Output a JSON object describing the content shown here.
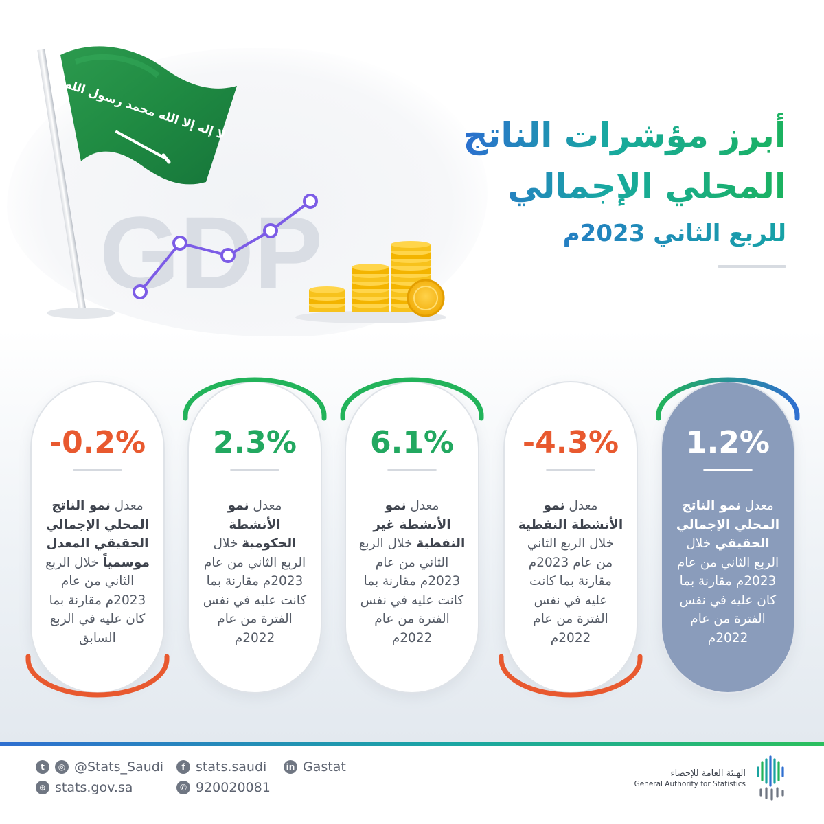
{
  "hero": {
    "flag_text": "لا إله إلا الله محمد رسول الله",
    "watermark": "GDP"
  },
  "title": {
    "line1": "أبرز مؤشرات الناتج",
    "line2": "المحلي الإجمالي",
    "line3": "للربع الثاني 2023م"
  },
  "cards": [
    {
      "value": "1.2%",
      "value_color": "#ffffff",
      "highlight": true,
      "desc_pre": "معدل ",
      "desc_bold": "نمو الناتج المحلي الإجمالي الحقيقي",
      "desc_post": " خلال الربع الثاني من عام 2023م مقارنة بما كان عليه في نفس الفترة من عام 2022م",
      "arc": "top",
      "arc_colors": [
        "#22b35a",
        "#2f6fd0"
      ]
    },
    {
      "value": "-4.3%",
      "value_color": "#e8592f",
      "highlight": false,
      "desc_pre": "معدل ",
      "desc_bold": "نمو الأنشطة النفطية",
      "desc_post": " خلال الربع الثاني من عام 2023م مقارنة بما كانت عليه في نفس الفترة من عام 2022م",
      "arc": "bottom",
      "arc_colors": [
        "#e8592f",
        "#e8592f"
      ]
    },
    {
      "value": "6.1%",
      "value_color": "#22a860",
      "highlight": false,
      "desc_pre": "معدل ",
      "desc_bold": "نمو الأنشطة غير النفطية",
      "desc_post": " خلال الربع الثاني من عام 2023م مقارنة بما كانت عليه في نفس الفترة من عام 2022م",
      "arc": "top",
      "arc_colors": [
        "#22b35a",
        "#22b35a"
      ]
    },
    {
      "value": "2.3%",
      "value_color": "#22a860",
      "highlight": false,
      "desc_pre": "معدل ",
      "desc_bold": "نمو الأنشطة الحكومية",
      "desc_post": " خلال الربع الثاني من عام 2023م مقارنة بما كانت عليه في نفس الفترة من عام 2022م",
      "arc": "top",
      "arc_colors": [
        "#22b35a",
        "#22b35a"
      ]
    },
    {
      "value": "-0.2%",
      "value_color": "#e8592f",
      "highlight": false,
      "desc_pre": "معدل ",
      "desc_bold": "نمو الناتج المحلي الإجمالي الحقيقي المعدل موسمياً",
      "desc_post": " خلال الربع الثاني من عام 2023م مقارنة بما كان عليه في الربع السابق",
      "arc": "bottom",
      "arc_colors": [
        "#e8592f",
        "#e8592f"
      ]
    }
  ],
  "footer": {
    "twitter_instagram": "@Stats_Saudi",
    "website": "stats.gov.sa",
    "facebook": "stats.saudi",
    "phone": "920020081",
    "linkedin": "Gastat",
    "org_name_ar": "الهيئة العامة للإحصاء",
    "org_name_en": "General Authority for Statistics",
    "icons": [
      "twitter-icon",
      "instagram-icon",
      "globe-icon",
      "facebook-icon",
      "phone-icon",
      "linkedin-icon"
    ]
  },
  "colors": {
    "green": "#22a860",
    "orange": "#e8592f",
    "blue": "#2f6fd0",
    "highlight_card": "#8a9cbb"
  }
}
